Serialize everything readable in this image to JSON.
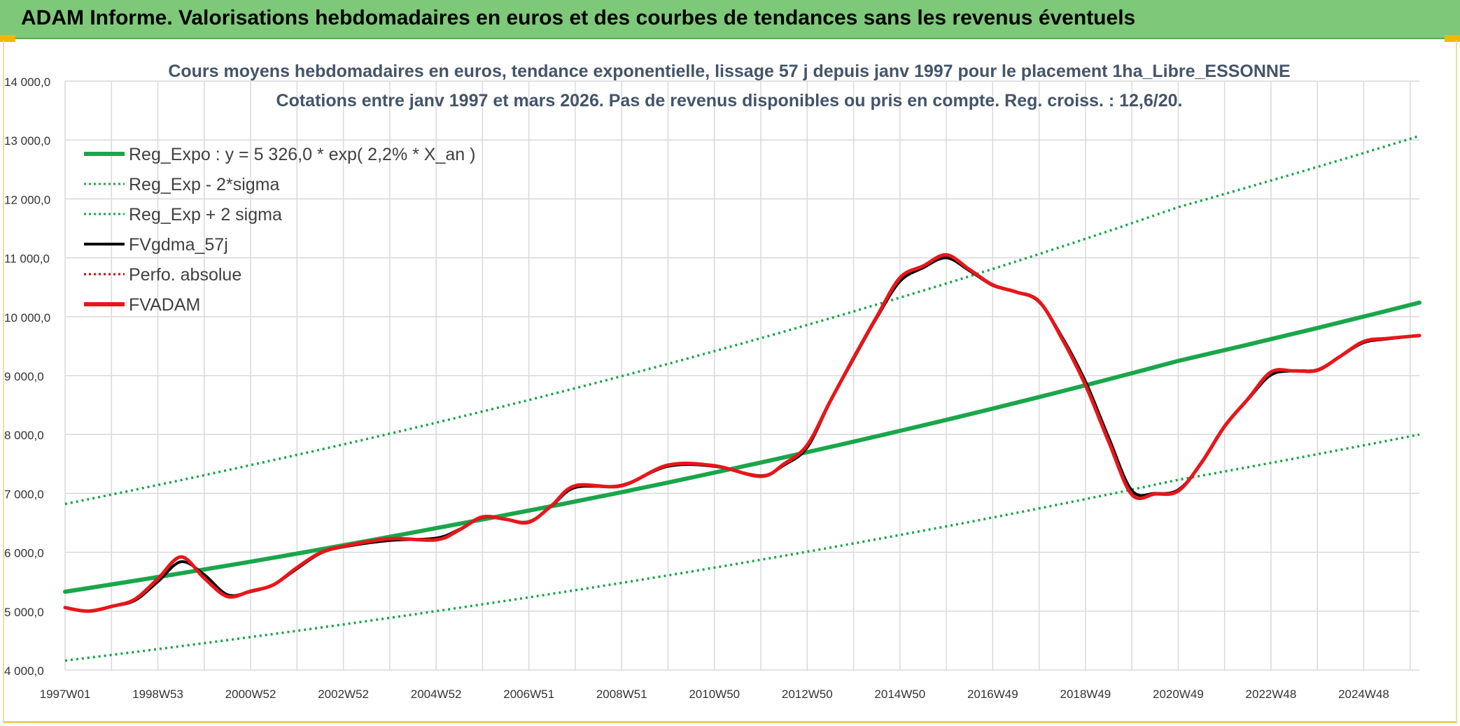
{
  "header": {
    "title": "ADAM Informe. Valorisations hebdomadaires en euros et des courbes de tendances sans les revenus éventuels"
  },
  "colors": {
    "banner": "#7ec87a",
    "reg_expo": "#1aa64a",
    "fvgdma": "#000000",
    "fvadam": "#e8161b",
    "perfo": "#cc0000",
    "grid": "#d9d9d9"
  },
  "chart_data": {
    "type": "line",
    "title": "Cours moyens hebdomadaires en euros, tendance exponentielle, lissage 57 j depuis janv 1997 pour le placement 1ha_Libre_ESSONNE",
    "subtitle": "Cotations entre janv 1997 et mars 2026. Pas de revenus disponibles ou pris en compte. Reg. croiss. : 12,6/20.",
    "xlabel": "",
    "ylabel": "",
    "ylim": [
      4000,
      14000
    ],
    "y_ticks": [
      "4 000,0",
      "5 000,0",
      "6 000,0",
      "7 000,0",
      "8 000,0",
      "9 000,0",
      "10 000,0",
      "11 000,0",
      "12 000,0",
      "13 000,0",
      "14 000,0"
    ],
    "x_tick_labels": [
      "1997W01",
      "1998W53",
      "2000W52",
      "2002W52",
      "2004W52",
      "2006W51",
      "2008W51",
      "2010W50",
      "2012W50",
      "2014W50",
      "2016W49",
      "2018W49",
      "2020W49",
      "2022W48",
      "2024W48"
    ],
    "xlim": [
      1997.0,
      2026.2
    ],
    "grid": true,
    "legend_position": "top-left",
    "legend": [
      {
        "label": "Reg_Expo : y = 5 326,0 * exp( 2,2% *  X_an )",
        "style": "solid-thick",
        "color": "#1aa64a"
      },
      {
        "label": "Reg_Exp - 2*sigma",
        "style": "dotted",
        "color": "#1aa64a"
      },
      {
        "label": "Reg_Exp + 2 sigma",
        "style": "dotted",
        "color": "#1aa64a"
      },
      {
        "label": "FVgdma_57j",
        "style": "solid",
        "color": "#000000"
      },
      {
        "label": "Perfo. absolue",
        "style": "dotted",
        "color": "#cc0000"
      },
      {
        "label": "FVADAM",
        "style": "solid-thick",
        "color": "#e8161b"
      }
    ],
    "series": [
      {
        "name": "Reg_Expo : y = 5 326,0 * exp( 2,2% *  X_an )",
        "x": [
          1997.0,
          2001.0,
          2005.0,
          2009.0,
          2013.0,
          2017.0,
          2021.0,
          2026.2
        ],
        "values": [
          5330,
          5840,
          6410,
          7020,
          7700,
          8440,
          9250,
          10240
        ]
      },
      {
        "name": "Reg_Exp - 2*sigma",
        "x": [
          1997.0,
          2001.0,
          2005.0,
          2009.0,
          2013.0,
          2017.0,
          2021.0,
          2026.2
        ],
        "values": [
          4160,
          4560,
          5000,
          5480,
          6010,
          6590,
          7230,
          8000
        ]
      },
      {
        "name": "Reg_Exp + 2 sigma",
        "x": [
          1997.0,
          2001.0,
          2005.0,
          2009.0,
          2013.0,
          2017.0,
          2021.0,
          2026.2
        ],
        "values": [
          6820,
          7480,
          8200,
          8990,
          9860,
          10810,
          11860,
          13070
        ]
      },
      {
        "name": "FVgdma_57j",
        "x": [
          1997.0,
          1997.5,
          1998.0,
          1998.5,
          1999.0,
          1999.5,
          2000.0,
          2000.5,
          2001.0,
          2001.5,
          2002.0,
          2002.5,
          2003.0,
          2004.0,
          2005.0,
          2005.5,
          2006.0,
          2006.5,
          2007.0,
          2007.5,
          2008.0,
          2009.0,
          2010.0,
          2011.0,
          2012.0,
          2012.5,
          2013.0,
          2013.5,
          2014.0,
          2014.5,
          2015.0,
          2015.5,
          2016.0,
          2016.5,
          2017.0,
          2017.5,
          2018.0,
          2018.5,
          2019.0,
          2019.5,
          2020.0,
          2020.5,
          2021.0,
          2021.5,
          2022.0,
          2022.5,
          2023.0,
          2023.5,
          2024.0,
          2024.5,
          2025.0,
          2025.5,
          2026.2
        ],
        "values": [
          5060,
          5000,
          5080,
          5180,
          5500,
          5840,
          5620,
          5280,
          5330,
          5450,
          5720,
          5980,
          6090,
          6200,
          6240,
          6390,
          6590,
          6560,
          6520,
          6790,
          7100,
          7140,
          7460,
          7460,
          7300,
          7480,
          7780,
          8560,
          9280,
          9980,
          10600,
          10830,
          11000,
          10780,
          10530,
          10420,
          10250,
          9650,
          8900,
          7950,
          7050,
          7000,
          7060,
          7510,
          8130,
          8590,
          9010,
          9080,
          9100,
          9330,
          9560,
          9620,
          9680
        ]
      },
      {
        "name": "FVADAM",
        "x": [
          1997.0,
          1997.5,
          1998.0,
          1998.5,
          1999.0,
          1999.5,
          2000.0,
          2000.5,
          2001.0,
          2001.5,
          2002.0,
          2002.5,
          2003.0,
          2004.0,
          2005.0,
          2005.5,
          2006.0,
          2006.5,
          2007.0,
          2007.5,
          2008.0,
          2009.0,
          2010.0,
          2011.0,
          2012.0,
          2012.5,
          2013.0,
          2013.5,
          2014.0,
          2014.5,
          2015.0,
          2015.5,
          2016.0,
          2016.5,
          2017.0,
          2017.5,
          2018.0,
          2018.5,
          2019.0,
          2019.5,
          2020.0,
          2020.5,
          2021.0,
          2021.5,
          2022.0,
          2022.5,
          2023.0,
          2023.5,
          2024.0,
          2024.5,
          2025.0,
          2025.5,
          2026.2
        ],
        "values": [
          5060,
          5000,
          5080,
          5200,
          5550,
          5920,
          5560,
          5250,
          5340,
          5450,
          5740,
          5990,
          6100,
          6230,
          6210,
          6380,
          6600,
          6560,
          6510,
          6800,
          7130,
          7130,
          7480,
          7470,
          7290,
          7500,
          7820,
          8570,
          9300,
          10000,
          10660,
          10860,
          11050,
          10800,
          10540,
          10420,
          10260,
          9620,
          8840,
          7880,
          6980,
          6990,
          7040,
          7520,
          8140,
          8600,
          9060,
          9080,
          9090,
          9330,
          9580,
          9630,
          9680
        ]
      }
    ]
  }
}
